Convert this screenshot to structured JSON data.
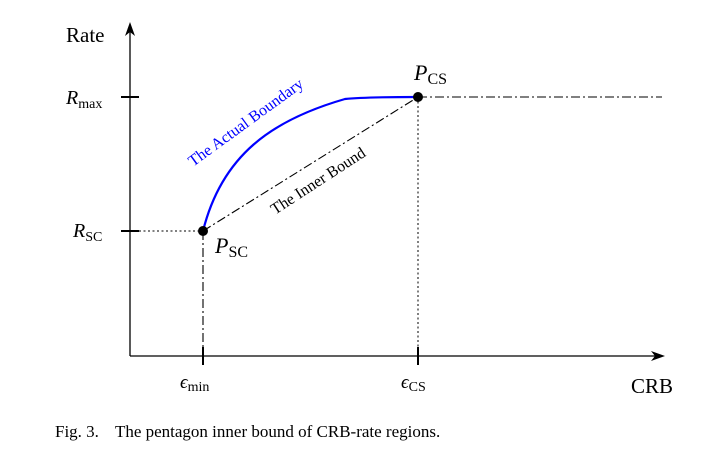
{
  "figure": {
    "axes": {
      "y_label": "Rate",
      "x_label": "CRB"
    },
    "y_ticks": [
      {
        "main": "R",
        "sub": "max"
      },
      {
        "main": "R",
        "sub": "SC"
      }
    ],
    "x_ticks": [
      {
        "main": "ϵ",
        "sub": "min"
      },
      {
        "main": "ϵ",
        "sub": "CS"
      }
    ],
    "points": [
      {
        "main": "P",
        "sub": "CS"
      },
      {
        "main": "P",
        "sub": "SC"
      }
    ],
    "curves": {
      "actual_boundary": "The Actual Boundary",
      "inner_bound": "The Inner Bound"
    },
    "colors": {
      "actual_boundary": "#0000ff",
      "lines": "#000000"
    }
  },
  "caption": {
    "label": "Fig. 3.",
    "text": "The pentagon inner bound of CRB-rate regions."
  }
}
